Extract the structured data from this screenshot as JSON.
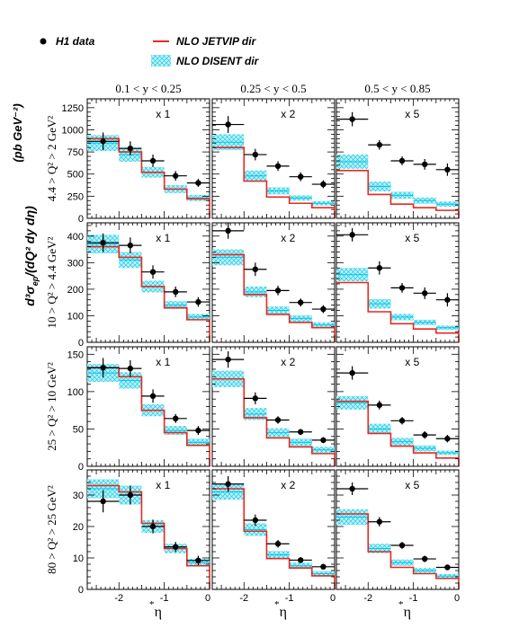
{
  "legend": {
    "data_label": "H1 data",
    "jetvip_label": "NLO JETVIP dir",
    "disent_label": "NLO DISENT dir"
  },
  "colors": {
    "data": "#000000",
    "jetvip": "#e8281e",
    "disent_fill": "#bff0f8",
    "disent_hatch": "#00c8e6"
  },
  "y_axis_title": "d³σep/(dQ² dy dη)   (pb GeV⁻²)",
  "y_axis_title_parts": {
    "main": "d³σ",
    "sub": "ep",
    "rest": "/(dQ² dy dη)",
    "units": "(pb GeV⁻²)"
  },
  "x_label": "η",
  "x_label_sub": "*",
  "column_titles": [
    "0.1 < y < 0.25",
    "0.25 < y < 0.5",
    "0.5 < y < 0.85"
  ],
  "row_titles": [
    "4.4 > Q² > 2 GeV²",
    "10 > Q² > 4.4 GeV²",
    "25 > Q² > 10 GeV²",
    "80 > Q² > 25 GeV²"
  ],
  "scale_labels": [
    "x 1",
    "x 2",
    "x 5"
  ],
  "x_ticks": [
    "-2",
    "-1",
    "0"
  ],
  "y_ticks": [
    [
      "0",
      "250",
      "500",
      "750",
      "1000",
      "1250"
    ],
    [
      "0",
      "100",
      "200",
      "300",
      "400"
    ],
    [
      "0",
      "50",
      "100",
      "150"
    ],
    [
      "0",
      "10",
      "20",
      "30"
    ]
  ],
  "chart_data": {
    "type": "histogram-grid",
    "xlim": [
      -2.7,
      0
    ],
    "bin_edges": [
      -2.7,
      -2.0,
      -1.5,
      -1.0,
      -0.5,
      0.0
    ],
    "data_x": [
      -2.35,
      -1.75,
      -1.25,
      -0.75,
      -0.25
    ],
    "data_x_err": [
      0.35,
      0.25,
      0.25,
      0.25,
      0.25
    ],
    "rows": [
      {
        "ylim": [
          0,
          1350
        ],
        "panels": [
          {
            "data": [
              870,
              790,
              650,
              480,
              400
            ],
            "err": [
              100,
              80,
              70,
              55,
              45
            ],
            "jetvip": [
              900,
              750,
              520,
              330,
              220
            ],
            "disent": [
              850,
              720,
              520,
              330,
              230
            ],
            "disent_band": [
              90,
              80,
              60,
              45,
              35
            ]
          },
          {
            "data": [
              1060,
              720,
              590,
              470,
              385
            ],
            "err": [
              95,
              65,
              55,
              50,
              45
            ],
            "jetvip": [
              800,
              420,
              240,
              170,
              120
            ],
            "disent": [
              860,
              480,
              310,
              230,
              170
            ],
            "disent_band": [
              90,
              60,
              40,
              30,
              25
            ]
          },
          {
            "data": [
              1120,
              830,
              650,
              610,
              550
            ],
            "err": [
              80,
              55,
              50,
              60,
              70
            ],
            "jetvip": [
              540,
              270,
              160,
              120,
              90
            ],
            "disent": [
              640,
              360,
              260,
              200,
              160
            ],
            "disent_band": [
              80,
              55,
              40,
              35,
              30
            ]
          }
        ]
      },
      {
        "ylim": [
          0,
          450
        ],
        "panels": [
          {
            "data": [
              375,
              365,
              265,
              190,
              152
            ],
            "err": [
              35,
              30,
              25,
              20,
              18
            ],
            "jetvip": [
              360,
              320,
              210,
              130,
              85
            ],
            "disent": [
              370,
              310,
              210,
              140,
              95
            ],
            "disent_band": [
              35,
              30,
              22,
              15,
              12
            ]
          },
          {
            "data": [
              420,
              275,
              195,
              150,
              125
            ],
            "err": [
              30,
              25,
              18,
              15,
              15
            ],
            "jetvip": [
              330,
              180,
              105,
              75,
              55
            ],
            "disent": [
              320,
              190,
              120,
              90,
              65
            ],
            "disent_band": [
              30,
              20,
              15,
              12,
              10
            ]
          },
          {
            "data": [
              405,
              280,
              205,
              185,
              160
            ],
            "err": [
              25,
              25,
              18,
              22,
              25
            ],
            "jetvip": [
              225,
              115,
              70,
              50,
              35
            ],
            "disent": [
              255,
              145,
              95,
              75,
              55
            ],
            "disent_band": [
              25,
              18,
              12,
              10,
              8
            ]
          }
        ]
      },
      {
        "ylim": [
          0,
          160
        ],
        "panels": [
          {
            "data": [
              132,
              131,
              94,
              64,
              48
            ],
            "err": [
              13,
              11,
              9,
              6,
              6
            ],
            "jetvip": [
              132,
              120,
              75,
              45,
              28
            ],
            "disent": [
              125,
              115,
              75,
              48,
              32
            ],
            "disent_band": [
              12,
              11,
              8,
              6,
              5
            ]
          },
          {
            "data": [
              143,
              91,
              62,
              46,
              35
            ],
            "err": [
              11,
              8,
              5,
              4,
              4
            ],
            "jetvip": [
              117,
              65,
              38,
              26,
              17
            ],
            "disent": [
              117,
              70,
              45,
              32,
              22
            ],
            "disent_band": [
              11,
              8,
              6,
              5,
              4
            ]
          },
          {
            "data": [
              125,
              82,
              61,
              42,
              37
            ],
            "err": [
              9,
              6,
              5,
              5,
              5
            ],
            "jetvip": [
              87,
              44,
              27,
              18,
              11
            ],
            "disent": [
              85,
              50,
              33,
              24,
              18
            ],
            "disent_band": [
              9,
              7,
              5,
              4,
              3
            ]
          }
        ]
      },
      {
        "ylim": [
          0,
          38
        ],
        "panels": [
          {
            "data": [
              28,
              30,
              20,
              13.5,
              9.2
            ],
            "err": [
              3.5,
              3,
              2.2,
              1.6,
              1.5
            ],
            "jetvip": [
              33,
              31,
              21,
              13,
              7.5
            ],
            "disent": [
              32,
              30,
              20,
              13,
              8.5
            ],
            "disent_band": [
              3,
              3,
              2,
              1.5,
              1.2
            ]
          },
          {
            "data": [
              33.5,
              22,
              14.5,
              9.3,
              7.2
            ],
            "err": [
              2.5,
              1.8,
              1.2,
              0.9,
              0.9
            ],
            "jetvip": [
              32,
              18.5,
              9.8,
              6.8,
              4.3
            ],
            "disent": [
              31,
              19,
              11,
              7.5,
              5
            ],
            "disent_band": [
              2.5,
              2,
              1.2,
              1,
              0.8
            ]
          },
          {
            "data": [
              32,
              21.5,
              14,
              9.7,
              7
            ],
            "err": [
              2,
              1.5,
              1.1,
              1,
              0.8
            ],
            "jetvip": [
              24,
              12,
              7,
              5,
              3.5
            ],
            "disent": [
              23,
              13,
              8.5,
              6,
              4.2
            ],
            "disent_band": [
              2.5,
              1.5,
              1,
              0.8,
              0.7
            ]
          }
        ]
      }
    ]
  }
}
